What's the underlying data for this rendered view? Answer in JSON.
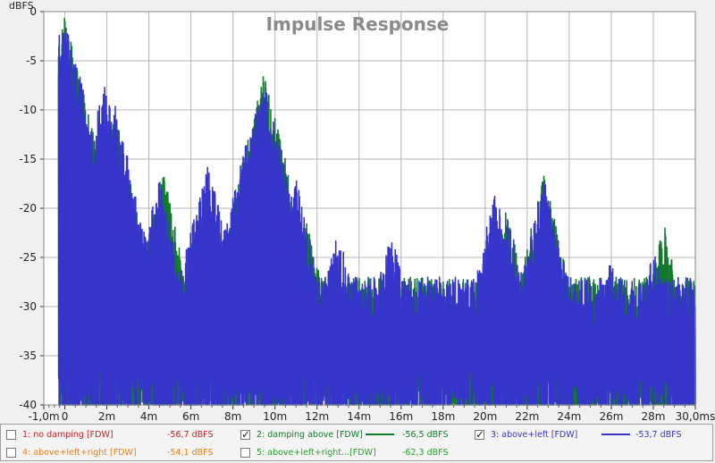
{
  "chart_data": {
    "type": "line",
    "title": "Impulse Response",
    "ylabel": "dBFS",
    "xlabel": "",
    "x_tick_labels": [
      "-1,0m",
      "0",
      "2m",
      "4m",
      "6m",
      "8m",
      "10m",
      "12m",
      "14m",
      "16m",
      "18m",
      "20m",
      "22m",
      "24m",
      "26m",
      "28m",
      "30,0ms"
    ],
    "x_ticks": [
      -1,
      0,
      2,
      4,
      6,
      8,
      10,
      12,
      14,
      16,
      18,
      20,
      22,
      24,
      26,
      28,
      30
    ],
    "y_tick_labels": [
      "0",
      "-5",
      "-10",
      "-15",
      "-20",
      "-25",
      "-30",
      "-35",
      "-40"
    ],
    "y_ticks": [
      0,
      -5,
      -10,
      -15,
      -20,
      -25,
      -30,
      -35,
      -40
    ],
    "xlim": [
      -1,
      30
    ],
    "ylim": [
      -40,
      0
    ],
    "grid": true,
    "background": "#ffffff",
    "grid_color": "#b4b4b4",
    "series": [
      {
        "name": "2: damping above [FDW]",
        "color": "#107a2a",
        "peaks": [
          [
            0.0,
            -0.2
          ],
          [
            2.3,
            -10
          ],
          [
            4.7,
            -16.5
          ],
          [
            9.5,
            -6
          ],
          [
            11.5,
            -21
          ],
          [
            21.0,
            -20
          ],
          [
            22.8,
            -16.5
          ],
          [
            23.0,
            -20
          ],
          [
            28.5,
            -21.5
          ]
        ]
      },
      {
        "name": "3: above+left [FDW]",
        "color": "#3535cc",
        "peaks": [
          [
            0.0,
            0
          ],
          [
            0.2,
            -3
          ],
          [
            1.9,
            -7
          ],
          [
            2.4,
            -9.5
          ],
          [
            2.9,
            -16
          ],
          [
            4.5,
            -17
          ],
          [
            6.8,
            -15
          ],
          [
            9.1,
            -9
          ],
          [
            9.5,
            -7
          ],
          [
            10.0,
            -15
          ],
          [
            11.0,
            -17
          ],
          [
            13.0,
            -22
          ],
          [
            15.5,
            -22
          ],
          [
            20.5,
            -18
          ],
          [
            21.0,
            -20
          ],
          [
            22.8,
            -17
          ],
          [
            23.0,
            -22
          ],
          [
            26.0,
            -25
          ],
          [
            28.0,
            -24
          ]
        ]
      }
    ]
  },
  "legend": {
    "items": [
      {
        "label": "1: no damping [FDW]",
        "value": "-56,7 dBFS",
        "color": "#cc2020",
        "checked": false
      },
      {
        "label": "2: damping above [FDW]",
        "value": "-56,5 dBFS",
        "color": "#107a2a",
        "checked": true
      },
      {
        "label": "3: above+left [FDW]",
        "value": "-53,7 dBFS",
        "color": "#3535cc",
        "checked": true
      },
      {
        "label": "4: above+left+right [FDW]",
        "value": "-54,1 dBFS",
        "color": "#ee7d10",
        "checked": false
      },
      {
        "label": "5: above+left+right...[FDW]",
        "value": "-62,3 dBFS",
        "color": "#22a22a",
        "checked": false
      }
    ]
  }
}
